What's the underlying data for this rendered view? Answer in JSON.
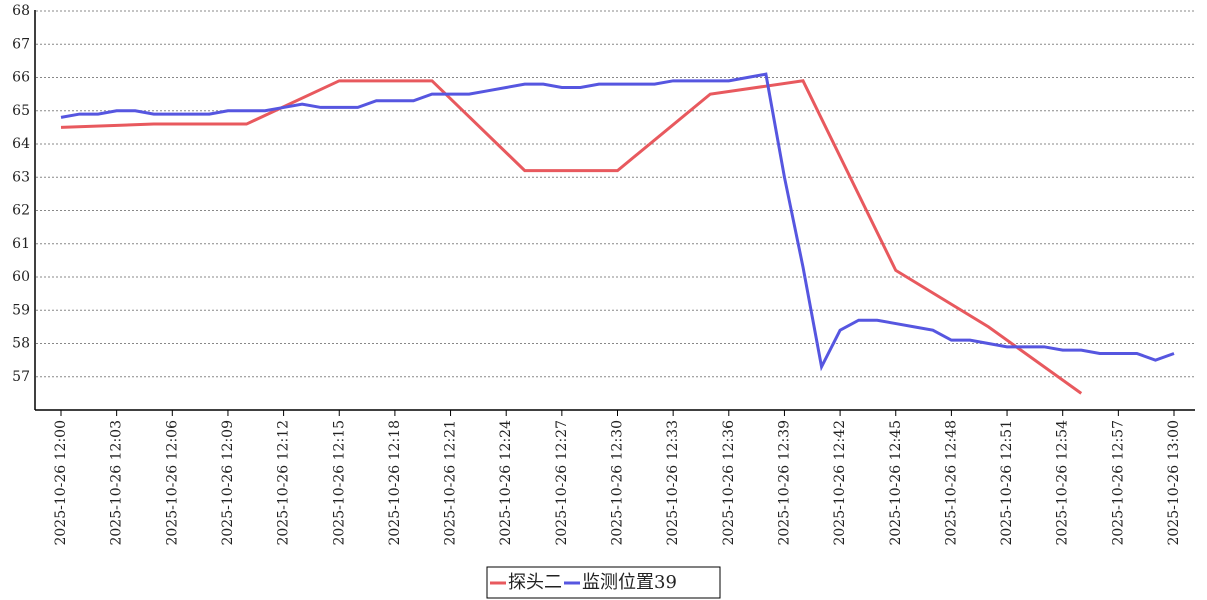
{
  "chart_data": {
    "type": "line",
    "xlim": [
      "2025-10-26 12:00",
      "2025-10-26 13:00"
    ],
    "xticks": [
      "2025-10-26 12:00",
      "2025-10-26 12:03",
      "2025-10-26 12:06",
      "2025-10-26 12:09",
      "2025-10-26 12:12",
      "2025-10-26 12:15",
      "2025-10-26 12:18",
      "2025-10-26 12:21",
      "2025-10-26 12:24",
      "2025-10-26 12:27",
      "2025-10-26 12:30",
      "2025-10-26 12:33",
      "2025-10-26 12:36",
      "2025-10-26 12:39",
      "2025-10-26 12:42",
      "2025-10-26 12:45",
      "2025-10-26 12:48",
      "2025-10-26 12:51",
      "2025-10-26 12:54",
      "2025-10-26 12:57",
      "2025-10-26 13:00"
    ],
    "ylim": [
      56,
      68
    ],
    "yticks": [
      57,
      58,
      59,
      60,
      61,
      62,
      63,
      64,
      65,
      66,
      67,
      68
    ],
    "grid": true,
    "legend": "bottom",
    "series": [
      {
        "name": "探头二",
        "color": "#e8595e",
        "x": [
          "2025-10-26 12:00",
          "2025-10-26 12:05",
          "2025-10-26 12:10",
          "2025-10-26 12:15",
          "2025-10-26 12:20",
          "2025-10-26 12:25",
          "2025-10-26 12:30",
          "2025-10-26 12:35",
          "2025-10-26 12:40",
          "2025-10-26 12:45",
          "2025-10-26 12:50",
          "2025-10-26 12:55"
        ],
        "values": [
          64.5,
          64.6,
          64.6,
          65.9,
          65.9,
          63.2,
          63.2,
          65.5,
          65.9,
          60.2,
          58.5,
          56.5
        ]
      },
      {
        "name": "监测位置39",
        "color": "#5656e0",
        "x": [
          "2025-10-26 12:00",
          "2025-10-26 12:01",
          "2025-10-26 12:02",
          "2025-10-26 12:03",
          "2025-10-26 12:04",
          "2025-10-26 12:05",
          "2025-10-26 12:06",
          "2025-10-26 12:07",
          "2025-10-26 12:08",
          "2025-10-26 12:09",
          "2025-10-26 12:10",
          "2025-10-26 12:11",
          "2025-10-26 12:12",
          "2025-10-26 12:13",
          "2025-10-26 12:14",
          "2025-10-26 12:15",
          "2025-10-26 12:16",
          "2025-10-26 12:17",
          "2025-10-26 12:18",
          "2025-10-26 12:19",
          "2025-10-26 12:20",
          "2025-10-26 12:21",
          "2025-10-26 12:22",
          "2025-10-26 12:23",
          "2025-10-26 12:24",
          "2025-10-26 12:25",
          "2025-10-26 12:26",
          "2025-10-26 12:27",
          "2025-10-26 12:28",
          "2025-10-26 12:29",
          "2025-10-26 12:30",
          "2025-10-26 12:31",
          "2025-10-26 12:32",
          "2025-10-26 12:33",
          "2025-10-26 12:34",
          "2025-10-26 12:35",
          "2025-10-26 12:36",
          "2025-10-26 12:37",
          "2025-10-26 12:38",
          "2025-10-26 12:39",
          "2025-10-26 12:40",
          "2025-10-26 12:41",
          "2025-10-26 12:42",
          "2025-10-26 12:43",
          "2025-10-26 12:44",
          "2025-10-26 12:45",
          "2025-10-26 12:46",
          "2025-10-26 12:47",
          "2025-10-26 12:48",
          "2025-10-26 12:49",
          "2025-10-26 12:50",
          "2025-10-26 12:51",
          "2025-10-26 12:52",
          "2025-10-26 12:53",
          "2025-10-26 12:54",
          "2025-10-26 12:55",
          "2025-10-26 12:56",
          "2025-10-26 12:57",
          "2025-10-26 12:58",
          "2025-10-26 12:59",
          "2025-10-26 13:00"
        ],
        "values": [
          64.8,
          64.9,
          64.9,
          65.0,
          65.0,
          64.9,
          64.9,
          64.9,
          64.9,
          65.0,
          65.0,
          65.0,
          65.1,
          65.2,
          65.1,
          65.1,
          65.1,
          65.3,
          65.3,
          65.3,
          65.5,
          65.5,
          65.5,
          65.6,
          65.7,
          65.8,
          65.8,
          65.7,
          65.7,
          65.8,
          65.8,
          65.8,
          65.8,
          65.9,
          65.9,
          65.9,
          65.9,
          66.0,
          66.1,
          63.0,
          60.3,
          57.3,
          58.4,
          58.7,
          58.7,
          58.6,
          58.5,
          58.4,
          58.1,
          58.1,
          58.0,
          57.9,
          57.9,
          57.9,
          57.8,
          57.8,
          57.7,
          57.7,
          57.7,
          57.5,
          57.7
        ]
      }
    ]
  }
}
